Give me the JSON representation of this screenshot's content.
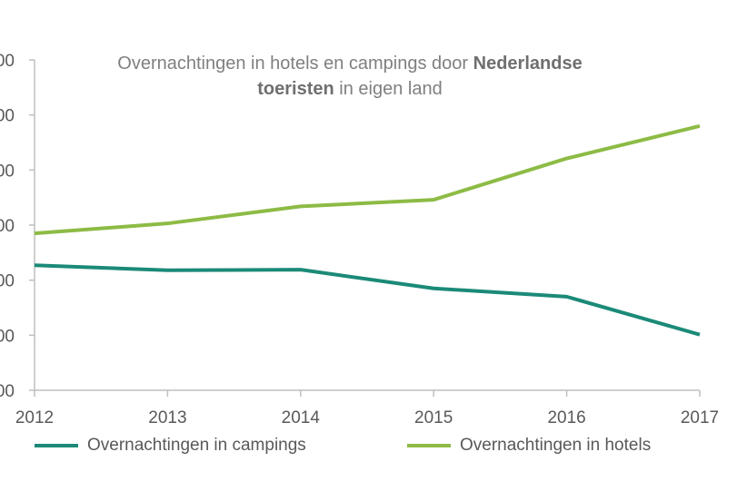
{
  "chart_data": {
    "type": "line",
    "title_parts": {
      "line1_plain": "Overnachtingen in hotels en campings door ",
      "line1_bold": "Nederlandse",
      "line2_bold": "toeristen",
      "line2_plain": " in eigen land"
    },
    "categories": [
      "2012",
      "2013",
      "2014",
      "2015",
      "2016",
      "2017"
    ],
    "ylim": [
      0,
      6
    ],
    "yticks": [
      0,
      1,
      2,
      3,
      4,
      5,
      6
    ],
    "ytick_labels": [
      "00",
      "00",
      "00",
      "00",
      "00",
      "00",
      "00"
    ],
    "grid": false,
    "legend_position": "bottom",
    "series": [
      {
        "name": "Overnachtingen in campings",
        "color": "#1b8a78",
        "values": [
          2.27,
          2.18,
          2.19,
          1.85,
          1.7,
          1.01
        ]
      },
      {
        "name": "Overnachtingen in hotels",
        "color": "#8dbb45",
        "values": [
          2.85,
          3.03,
          3.34,
          3.46,
          4.21,
          4.8
        ]
      }
    ]
  }
}
